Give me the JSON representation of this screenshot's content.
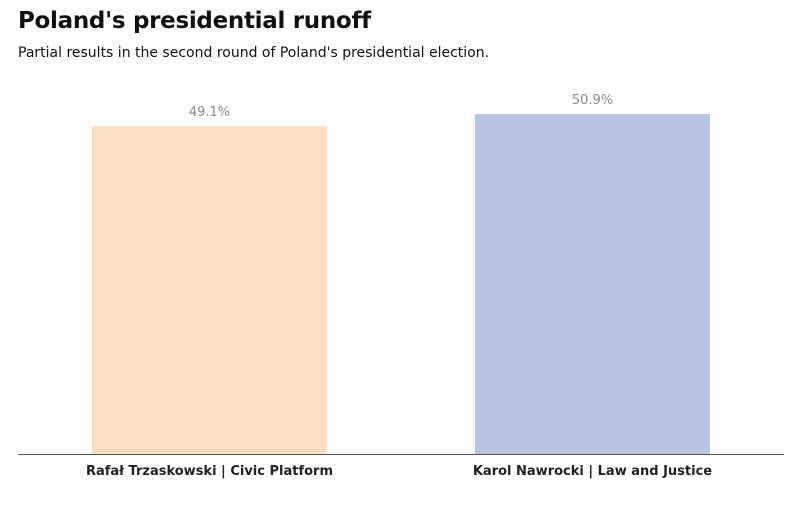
{
  "header": {
    "title": "Poland's presidential runoff",
    "subtitle": "Partial results in the second round of Poland's presidential election."
  },
  "chart_data": {
    "type": "bar",
    "title": "Poland's presidential runoff",
    "subtitle": "Partial results in the second round of Poland's presidential election.",
    "categories": [
      "Rafał Trzaskowski | Civic Platform",
      "Karol Nawrocki | Law and Justice"
    ],
    "values": [
      49.1,
      50.9
    ],
    "value_labels": [
      "49.1%",
      "50.9%"
    ],
    "colors": [
      "#fbdfc3",
      "#b8c4e1"
    ],
    "ylim": [
      0,
      54.5
    ],
    "grid": false,
    "xlabel": "",
    "ylabel": ""
  }
}
